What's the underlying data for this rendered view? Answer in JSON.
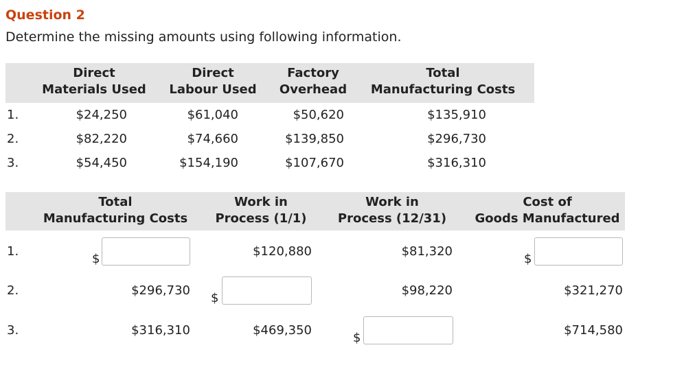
{
  "question": {
    "title": "Question 2",
    "instruction": "Determine the missing amounts using following information."
  },
  "table1": {
    "headers": [
      [
        "Direct",
        "Materials Used"
      ],
      [
        "Direct",
        "Labour Used"
      ],
      [
        "Factory",
        "Overhead"
      ],
      [
        "Total",
        "Manufacturing Costs"
      ]
    ],
    "rows": [
      {
        "num": "1.",
        "cells": [
          "$24,250",
          "$61,040",
          "$50,620",
          "$135,910"
        ]
      },
      {
        "num": "2.",
        "cells": [
          "$82,220",
          "$74,660",
          "$139,850",
          "$296,730"
        ]
      },
      {
        "num": "3.",
        "cells": [
          "$54,450",
          "$154,190",
          "$107,670",
          "$316,310"
        ]
      }
    ]
  },
  "table2": {
    "headers": [
      [
        "Total",
        "Manufacturing Costs"
      ],
      [
        "Work in",
        "Process (1/1)"
      ],
      [
        "Work in",
        "Process (12/31)"
      ],
      [
        "Cost of",
        "Goods Manufactured"
      ]
    ],
    "currency_symbol": "$",
    "rows": [
      {
        "num": "1.",
        "cells": [
          "",
          "$120,880",
          "$81,320",
          ""
        ]
      },
      {
        "num": "2.",
        "cells": [
          "$296,730",
          "",
          "$98,220",
          "$321,270"
        ]
      },
      {
        "num": "3.",
        "cells": [
          "$316,310",
          "$469,350",
          "",
          "$714,580"
        ]
      }
    ]
  }
}
